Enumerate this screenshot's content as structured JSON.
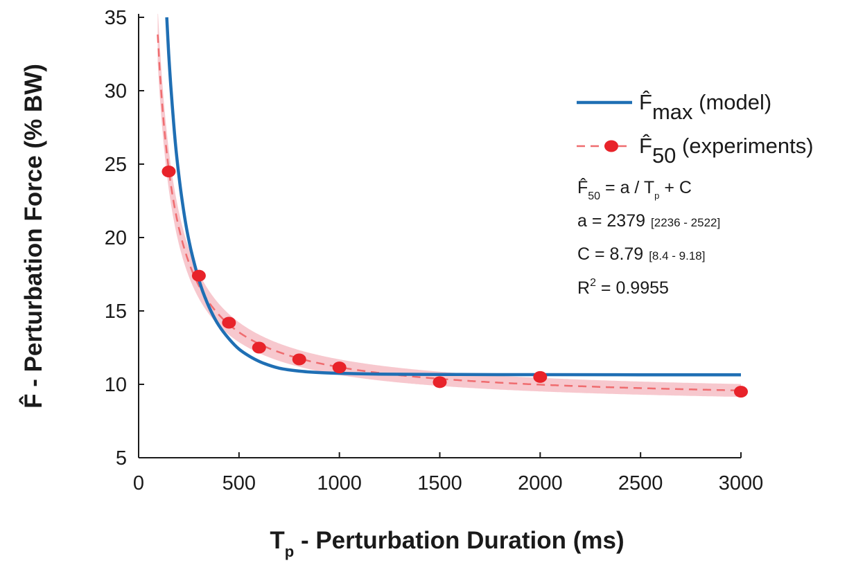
{
  "chart_data": {
    "type": "line",
    "xlabel": {
      "main": "T",
      "sub": "p",
      "rest": " - Perturbation Duration (ms)"
    },
    "ylabel": "F̂ - Perturbation Force (% BW)",
    "xlim": [
      0,
      3000
    ],
    "ylim": [
      5,
      35
    ],
    "xticks": [
      0,
      500,
      1000,
      1500,
      2000,
      2500,
      3000
    ],
    "yticks": [
      5,
      10,
      15,
      20,
      25,
      30,
      35
    ],
    "grid": false,
    "legend_position": "top-right",
    "series": [
      {
        "name": {
          "base": "F̂",
          "sub": "max",
          "rest": " (model)"
        },
        "style": "solid",
        "color": "#1f6fb4",
        "x": [
          140,
          150,
          160,
          175,
          190,
          210,
          235,
          260,
          290,
          320,
          360,
          400,
          450,
          500,
          560,
          620,
          700,
          800,
          900,
          1000,
          1200,
          1400,
          1600,
          1800,
          2000,
          2500,
          3000
        ],
        "y": [
          35,
          32.5,
          30.4,
          27.7,
          25.5,
          23.2,
          20.9,
          19.2,
          17.6,
          16.3,
          15.0,
          14.0,
          13.1,
          12.4,
          11.85,
          11.45,
          11.1,
          10.9,
          10.8,
          10.75,
          10.7,
          10.68,
          10.67,
          10.66,
          10.66,
          10.65,
          10.65
        ]
      },
      {
        "name": {
          "base": "F̂",
          "sub": "50",
          "rest": " (experiments)"
        },
        "style": "dashed",
        "color": "#e8232a",
        "markers": true,
        "x": [
          150,
          300,
          450,
          600,
          800,
          1000,
          1500,
          2000,
          3000
        ],
        "y": [
          24.5,
          17.4,
          14.2,
          12.5,
          11.7,
          11.15,
          10.15,
          10.5,
          9.5
        ],
        "fit": {
          "a": 2379,
          "C": 8.79
        },
        "band": {
          "a": [
            2236,
            2522
          ],
          "C": [
            8.4,
            9.18
          ]
        }
      }
    ],
    "annotations": {
      "equation": {
        "base": "F̂",
        "sub": "50",
        "mid": " = a / T",
        "sub2": "p",
        "rest": " + C"
      },
      "a_value": "a = 2379",
      "a_ci": "[2236 - 2522]",
      "c_value": "C = 8.79",
      "c_ci": "[8.4 - 9.18]",
      "r2": {
        "base": "R",
        "sup": "2",
        "rest": " = 0.9955"
      }
    }
  }
}
